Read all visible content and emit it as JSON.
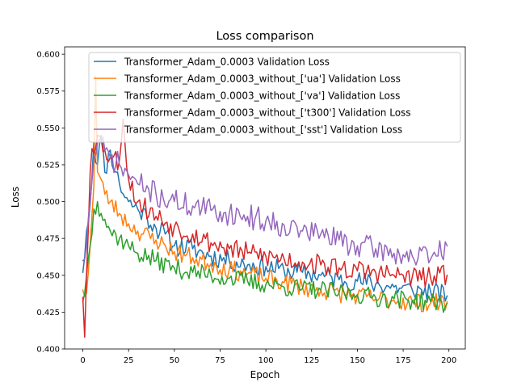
{
  "chart_data": {
    "type": "line",
    "title": "Loss comparison",
    "xlabel": "Epoch",
    "ylabel": "Loss",
    "xlim": [
      -9.95,
      208.95
    ],
    "ylim": [
      0.4,
      0.605
    ],
    "xticks": [
      0,
      25,
      50,
      75,
      100,
      125,
      150,
      175,
      200
    ],
    "yticks": [
      0.4,
      0.425,
      0.45,
      0.475,
      0.5,
      0.525,
      0.55,
      0.575,
      0.6
    ],
    "ytick_labels": [
      "0.400",
      "0.425",
      "0.450",
      "0.475",
      "0.500",
      "0.525",
      "0.550",
      "0.575",
      "0.600"
    ],
    "grid": false,
    "legend_position": "upper right",
    "series": [
      {
        "name": "Transformer_Adam_0.0003 Validation Loss",
        "color": "#1f77b4",
        "anchors": [
          [
            0,
            0.452
          ],
          [
            2,
            0.48
          ],
          [
            4,
            0.498
          ],
          [
            6,
            0.54
          ],
          [
            8,
            0.525
          ],
          [
            10,
            0.545
          ],
          [
            12,
            0.52
          ],
          [
            15,
            0.535
          ],
          [
            18,
            0.52
          ],
          [
            20,
            0.512
          ],
          [
            25,
            0.5
          ],
          [
            30,
            0.495
          ],
          [
            35,
            0.49
          ],
          [
            40,
            0.482
          ],
          [
            45,
            0.478
          ],
          [
            50,
            0.47
          ],
          [
            60,
            0.468
          ],
          [
            70,
            0.463
          ],
          [
            80,
            0.46
          ],
          [
            90,
            0.457
          ],
          [
            100,
            0.456
          ],
          [
            110,
            0.453
          ],
          [
            120,
            0.452
          ],
          [
            130,
            0.45
          ],
          [
            140,
            0.447
          ],
          [
            150,
            0.446
          ],
          [
            160,
            0.444
          ],
          [
            170,
            0.442
          ],
          [
            180,
            0.44
          ],
          [
            190,
            0.439
          ],
          [
            199,
            0.436
          ]
        ],
        "noise": 0.007,
        "seed": 11
      },
      {
        "name": "Transformer_Adam_0.0003_without_['ua'] Validation Loss",
        "color": "#ff7f0e",
        "anchors": [
          [
            0,
            0.44
          ],
          [
            2,
            0.438
          ],
          [
            4,
            0.47
          ],
          [
            6,
            0.51
          ],
          [
            7,
            0.585
          ],
          [
            8,
            0.52
          ],
          [
            10,
            0.515
          ],
          [
            12,
            0.505
          ],
          [
            15,
            0.5
          ],
          [
            20,
            0.492
          ],
          [
            25,
            0.485
          ],
          [
            30,
            0.48
          ],
          [
            40,
            0.474
          ],
          [
            50,
            0.466
          ],
          [
            60,
            0.462
          ],
          [
            70,
            0.458
          ],
          [
            80,
            0.454
          ],
          [
            90,
            0.451
          ],
          [
            100,
            0.448
          ],
          [
            110,
            0.445
          ],
          [
            120,
            0.442
          ],
          [
            130,
            0.44
          ],
          [
            140,
            0.438
          ],
          [
            150,
            0.436
          ],
          [
            160,
            0.434
          ],
          [
            170,
            0.433
          ],
          [
            180,
            0.432
          ],
          [
            190,
            0.431
          ],
          [
            199,
            0.432
          ]
        ],
        "noise": 0.0065,
        "seed": 23
      },
      {
        "name": "Transformer_Adam_0.0003_without_['va'] Validation Loss",
        "color": "#2ca02c",
        "anchors": [
          [
            0,
            0.432
          ],
          [
            2,
            0.45
          ],
          [
            4,
            0.47
          ],
          [
            6,
            0.495
          ],
          [
            8,
            0.5
          ],
          [
            10,
            0.492
          ],
          [
            12,
            0.488
          ],
          [
            15,
            0.48
          ],
          [
            20,
            0.475
          ],
          [
            25,
            0.47
          ],
          [
            30,
            0.465
          ],
          [
            40,
            0.46
          ],
          [
            50,
            0.455
          ],
          [
            60,
            0.452
          ],
          [
            70,
            0.45
          ],
          [
            80,
            0.448
          ],
          [
            90,
            0.446
          ],
          [
            100,
            0.444
          ],
          [
            110,
            0.442
          ],
          [
            120,
            0.441
          ],
          [
            130,
            0.44
          ],
          [
            140,
            0.438
          ],
          [
            150,
            0.437
          ],
          [
            160,
            0.435
          ],
          [
            170,
            0.434
          ],
          [
            180,
            0.433
          ],
          [
            190,
            0.432
          ],
          [
            199,
            0.431
          ]
        ],
        "noise": 0.0065,
        "seed": 37
      },
      {
        "name": "Transformer_Adam_0.0003_without_['t300'] Validation Loss",
        "color": "#d62728",
        "anchors": [
          [
            0,
            0.435
          ],
          [
            1,
            0.408
          ],
          [
            2,
            0.45
          ],
          [
            4,
            0.52
          ],
          [
            5,
            0.536
          ],
          [
            8,
            0.545
          ],
          [
            12,
            0.535
          ],
          [
            15,
            0.53
          ],
          [
            20,
            0.528
          ],
          [
            22,
            0.556
          ],
          [
            25,
            0.515
          ],
          [
            30,
            0.5
          ],
          [
            40,
            0.49
          ],
          [
            50,
            0.483
          ],
          [
            60,
            0.478
          ],
          [
            70,
            0.472
          ],
          [
            80,
            0.468
          ],
          [
            90,
            0.465
          ],
          [
            100,
            0.463
          ],
          [
            110,
            0.461
          ],
          [
            120,
            0.459
          ],
          [
            130,
            0.457
          ],
          [
            140,
            0.455
          ],
          [
            150,
            0.453
          ],
          [
            160,
            0.452
          ],
          [
            170,
            0.45
          ],
          [
            180,
            0.449
          ],
          [
            190,
            0.448
          ],
          [
            199,
            0.45
          ]
        ],
        "noise": 0.0075,
        "seed": 53
      },
      {
        "name": "Transformer_Adam_0.0003_without_['sst'] Validation Loss",
        "color": "#9467bd",
        "anchors": [
          [
            0,
            0.46
          ],
          [
            2,
            0.47
          ],
          [
            4,
            0.5
          ],
          [
            6,
            0.53
          ],
          [
            8,
            0.54
          ],
          [
            12,
            0.535
          ],
          [
            15,
            0.53
          ],
          [
            20,
            0.525
          ],
          [
            25,
            0.518
          ],
          [
            30,
            0.512
          ],
          [
            40,
            0.505
          ],
          [
            50,
            0.5
          ],
          [
            60,
            0.497
          ],
          [
            70,
            0.494
          ],
          [
            80,
            0.492
          ],
          [
            90,
            0.49
          ],
          [
            100,
            0.487
          ],
          [
            110,
            0.484
          ],
          [
            120,
            0.48
          ],
          [
            130,
            0.478
          ],
          [
            140,
            0.474
          ],
          [
            150,
            0.47
          ],
          [
            160,
            0.468
          ],
          [
            170,
            0.465
          ],
          [
            180,
            0.463
          ],
          [
            190,
            0.461
          ],
          [
            199,
            0.47
          ]
        ],
        "noise": 0.0085,
        "seed": 71
      }
    ]
  }
}
